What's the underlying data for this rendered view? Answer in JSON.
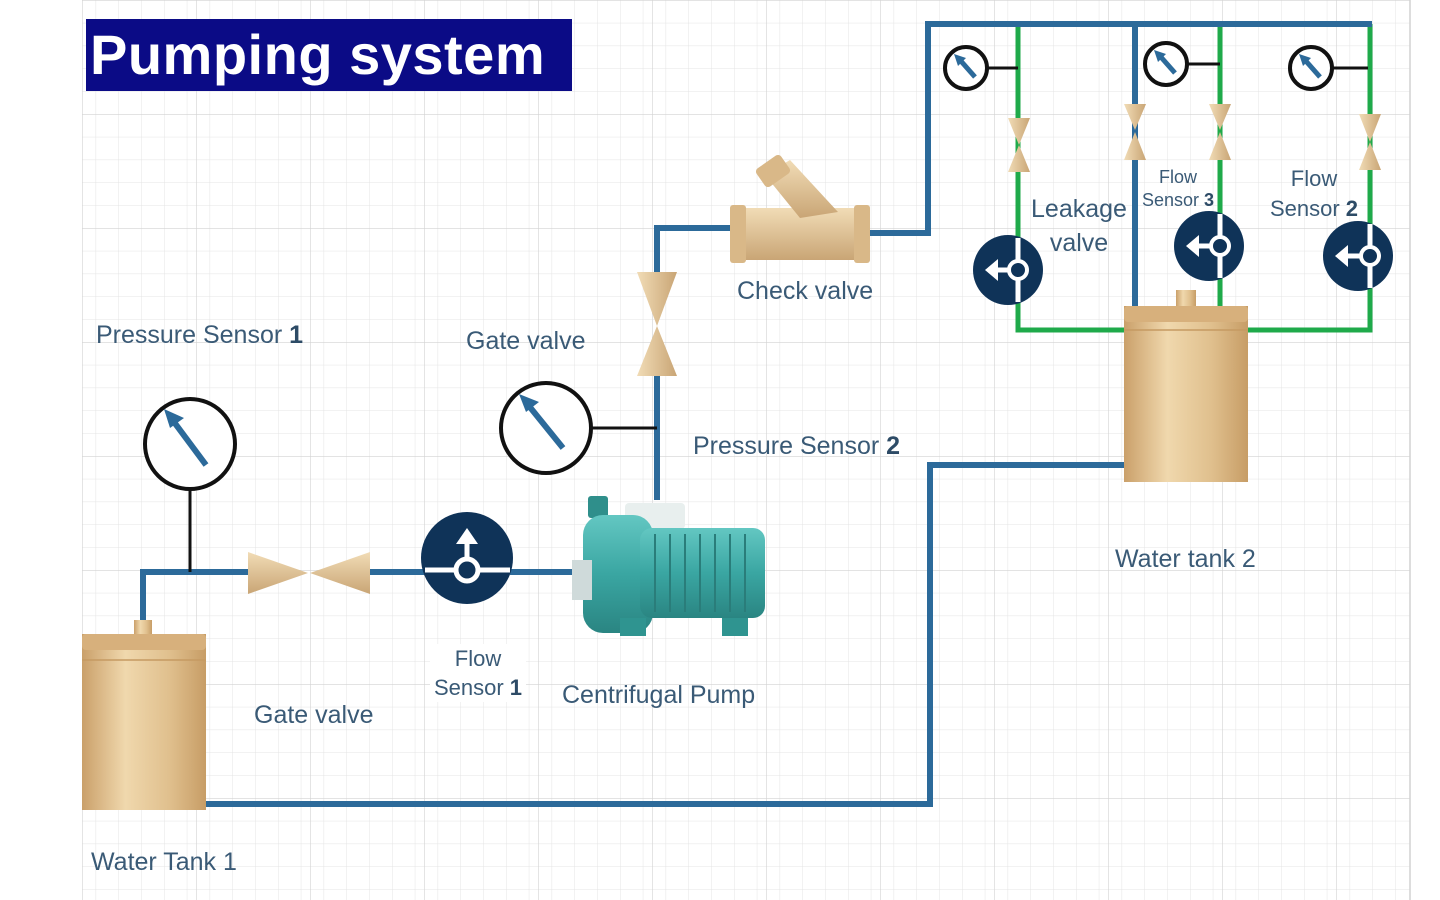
{
  "title": "Pumping system",
  "labels": {
    "pressure_sensor_1": {
      "text": "Pressure Sensor",
      "num": "1"
    },
    "gate_valve_upper": "Gate valve",
    "check_valve": "Check valve",
    "pressure_sensor_2": {
      "text": "Pressure Sensor",
      "num": "2"
    },
    "leakage_valve": {
      "line1": "Leakage",
      "line2": "valve"
    },
    "flow_sensor_3": {
      "line1": "Flow",
      "line2": "Sensor",
      "num": "3"
    },
    "flow_sensor_2": {
      "line1": "Flow",
      "line2": "Sensor",
      "num": "2"
    },
    "water_tank_2": "Water tank 2",
    "flow_sensor_1": {
      "line1": "Flow",
      "line2": "Sensor",
      "num": "1"
    },
    "centrifugal_pump": "Centrifugal Pump",
    "gate_valve_lower": "Gate valve",
    "water_tank_1": "Water Tank 1"
  },
  "colors": {
    "title_bg": "#0b0b86",
    "pipe_blue": "#2c6a9a",
    "pipe_green": "#1faa4a",
    "sensor_navy": "#0f3358",
    "tank_tan": "#e2c394",
    "pump_teal": "#3aa6a2",
    "label_text": "#3a5a76"
  }
}
